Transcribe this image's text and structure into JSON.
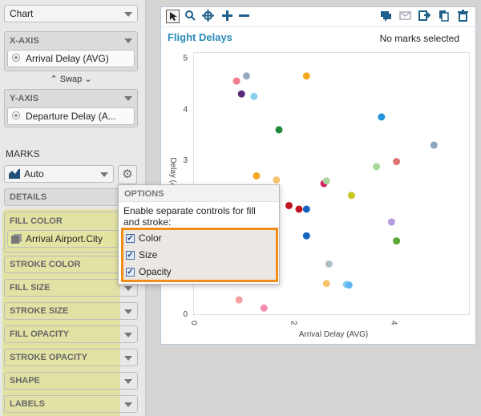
{
  "sidebar": {
    "chart_type": "Chart",
    "x_axis": {
      "label": "X-AXIS",
      "field": "Arrival Delay (AVG)"
    },
    "swap_label": "⌃ Swap ⌄",
    "y_axis": {
      "label": "Y-AXIS",
      "field": "Departure Delay (A..."
    },
    "marks_label": "MARKS",
    "marks_type": "Auto",
    "encodings": {
      "details": "DETAILS",
      "fill_color": "FILL COLOR",
      "fill_color_field": "Arrival Airport.City",
      "stroke_color": "STROKE COLOR",
      "fill_size": "FILL SIZE",
      "stroke_size": "STROKE SIZE",
      "fill_opacity": "FILL OPACITY",
      "stroke_opacity": "STROKE OPACITY",
      "shape": "SHAPE",
      "labels": "LABELS"
    }
  },
  "options_popup": {
    "header": "OPTIONS",
    "description": "Enable separate controls for fill and stroke:",
    "items": [
      {
        "label": "Color",
        "checked": true
      },
      {
        "label": "Size",
        "checked": true
      },
      {
        "label": "Opacity",
        "checked": true
      }
    ],
    "highlight_color": "#f08c1a"
  },
  "chart_panel": {
    "title": "Flight Delays",
    "selection_status": "No marks selected",
    "toolbar_icons": [
      "select-icon",
      "zoom-icon",
      "pan-icon",
      "zoom-in-icon",
      "zoom-out-icon",
      "comment-icon",
      "mail-icon",
      "export-icon",
      "copy-icon",
      "delete-icon"
    ]
  },
  "chart_data": {
    "type": "scatter",
    "xlabel": "Arrival Delay (AVG)",
    "ylabel": "Delay (AVG)",
    "x_ticks": [
      "0",
      "2",
      "4"
    ],
    "y_ticks": [
      "0",
      "1",
      "2",
      "3",
      "4",
      "5"
    ],
    "xlim": [
      0,
      5.5
    ],
    "ylim": [
      0,
      5.1
    ],
    "points": [
      {
        "x": 0.85,
        "y": 4.55,
        "color": "#ef7f8e"
      },
      {
        "x": 1.05,
        "y": 4.65,
        "color": "#9aaabd"
      },
      {
        "x": 0.95,
        "y": 4.3,
        "color": "#5a2a7a"
      },
      {
        "x": 1.2,
        "y": 4.25,
        "color": "#8ad0ec"
      },
      {
        "x": 2.25,
        "y": 4.65,
        "color": "#f5a623"
      },
      {
        "x": 3.75,
        "y": 3.85,
        "color": "#2196d6"
      },
      {
        "x": 1.7,
        "y": 3.6,
        "color": "#1e8a3a"
      },
      {
        "x": 4.8,
        "y": 3.3,
        "color": "#8ea6be"
      },
      {
        "x": 4.05,
        "y": 2.98,
        "color": "#e07272"
      },
      {
        "x": 3.65,
        "y": 2.88,
        "color": "#a8d89a"
      },
      {
        "x": 1.25,
        "y": 2.7,
        "color": "#f5a623"
      },
      {
        "x": 1.65,
        "y": 2.62,
        "color": "#f6c26e"
      },
      {
        "x": 2.6,
        "y": 2.55,
        "color": "#d81b60"
      },
      {
        "x": 2.65,
        "y": 2.6,
        "color": "#a8d89a"
      },
      {
        "x": 3.15,
        "y": 2.32,
        "color": "#c8c820"
      },
      {
        "x": 1.9,
        "y": 2.12,
        "color": "#c0141f"
      },
      {
        "x": 2.1,
        "y": 2.05,
        "color": "#c0141f"
      },
      {
        "x": 2.25,
        "y": 2.05,
        "color": "#1565c0"
      },
      {
        "x": 3.95,
        "y": 1.8,
        "color": "#b39ddb"
      },
      {
        "x": 2.25,
        "y": 1.53,
        "color": "#1565c0"
      },
      {
        "x": 4.05,
        "y": 1.43,
        "color": "#5aa832"
      },
      {
        "x": 2.7,
        "y": 0.98,
        "color": "#b0bec5"
      },
      {
        "x": 2.65,
        "y": 0.6,
        "color": "#f6c26e"
      },
      {
        "x": 3.05,
        "y": 0.58,
        "color": "#8ad0ec"
      },
      {
        "x": 3.1,
        "y": 0.57,
        "color": "#64b5f6"
      },
      {
        "x": 0.9,
        "y": 0.28,
        "color": "#f4a0a0"
      },
      {
        "x": 1.4,
        "y": 0.12,
        "color": "#f48fb1"
      }
    ]
  }
}
